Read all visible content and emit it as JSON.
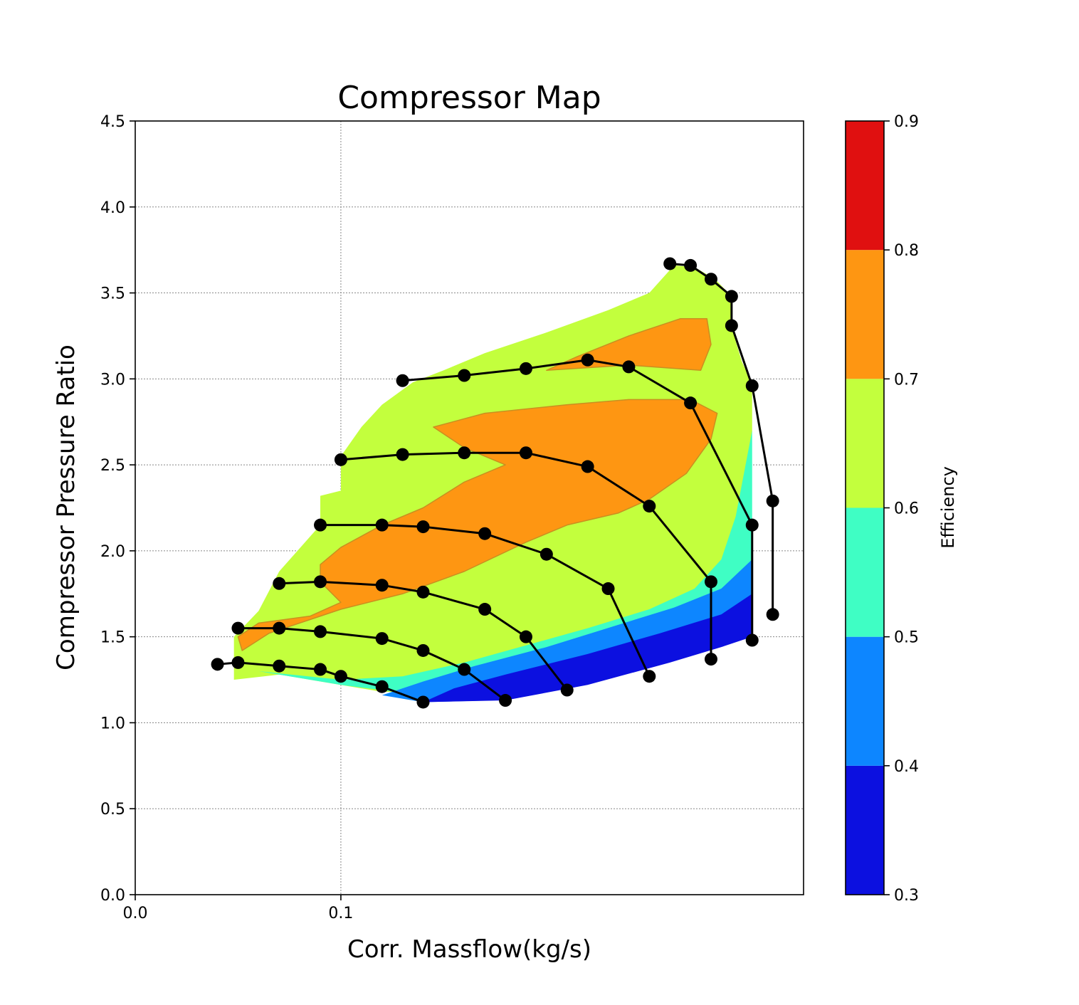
{
  "chart_data": {
    "type": "contour",
    "title": "Compressor Map",
    "xlabel": "Corr. Massflow(kg/s)",
    "ylabel": "Compressor Pressure Ratio",
    "xlim": [
      0.0,
      0.325
    ],
    "ylim": [
      0.0,
      4.5
    ],
    "x_ticks": [
      0.0,
      0.1
    ],
    "x_tick_labels": [
      "0.0",
      "0.1"
    ],
    "y_ticks": [
      0.0,
      0.5,
      1.0,
      1.5,
      2.0,
      2.5,
      3.0,
      3.5,
      4.0,
      4.5
    ],
    "y_tick_labels": [
      "0.0",
      "0.5",
      "1.0",
      "1.5",
      "2.0",
      "2.5",
      "3.0",
      "3.5",
      "4.0",
      "4.5"
    ],
    "grid": true,
    "colorbar": {
      "label": "Efficiency",
      "levels": [
        0.3,
        0.4,
        0.5,
        0.6,
        0.7,
        0.8,
        0.9
      ],
      "tick_labels": [
        "0.3",
        "0.4",
        "0.5",
        "0.6",
        "0.7",
        "0.8",
        "0.9"
      ],
      "colors": [
        "#0c10e0",
        "#0d86ff",
        "#3ffec4",
        "#c3ff3d",
        "#fe9612",
        "#e01010"
      ]
    },
    "efficiency_regions": [
      {
        "level": "0.6-0.7",
        "color": "#c3ff3d",
        "polygon": [
          [
            0.048,
            1.25
          ],
          [
            0.048,
            1.5
          ],
          [
            0.06,
            1.65
          ],
          [
            0.07,
            1.88
          ],
          [
            0.09,
            2.15
          ],
          [
            0.09,
            2.32
          ],
          [
            0.1,
            2.35
          ],
          [
            0.1,
            2.55
          ],
          [
            0.11,
            2.72
          ],
          [
            0.12,
            2.85
          ],
          [
            0.135,
            2.98
          ],
          [
            0.15,
            3.05
          ],
          [
            0.17,
            3.15
          ],
          [
            0.2,
            3.27
          ],
          [
            0.23,
            3.4
          ],
          [
            0.25,
            3.5
          ],
          [
            0.262,
            3.66
          ],
          [
            0.272,
            3.65
          ],
          [
            0.282,
            3.58
          ],
          [
            0.29,
            3.48
          ],
          [
            0.29,
            3.3
          ],
          [
            0.295,
            3.1
          ],
          [
            0.3,
            2.97
          ],
          [
            0.3,
            2.7
          ],
          [
            0.298,
            2.4
          ],
          [
            0.296,
            2.2
          ],
          [
            0.292,
            1.95
          ],
          [
            0.283,
            1.72
          ],
          [
            0.255,
            1.48
          ],
          [
            0.215,
            1.33
          ],
          [
            0.175,
            1.22
          ],
          [
            0.14,
            1.18
          ],
          [
            0.12,
            1.18
          ],
          [
            0.09,
            1.24
          ],
          [
            0.07,
            1.28
          ]
        ]
      },
      {
        "level": "0.5-0.6",
        "color": "#3ffec4",
        "polygon": [
          [
            0.06,
            1.3
          ],
          [
            0.1,
            1.22
          ],
          [
            0.14,
            1.16
          ],
          [
            0.175,
            1.19
          ],
          [
            0.215,
            1.3
          ],
          [
            0.255,
            1.45
          ],
          [
            0.28,
            1.62
          ],
          [
            0.29,
            1.72
          ],
          [
            0.3,
            1.9
          ],
          [
            0.3,
            2.7
          ],
          [
            0.296,
            2.45
          ],
          [
            0.292,
            2.2
          ],
          [
            0.285,
            1.95
          ],
          [
            0.272,
            1.78
          ],
          [
            0.25,
            1.66
          ],
          [
            0.22,
            1.55
          ],
          [
            0.19,
            1.45
          ],
          [
            0.16,
            1.35
          ],
          [
            0.13,
            1.27
          ],
          [
            0.1,
            1.25
          ]
        ]
      },
      {
        "level": "0.4-0.5",
        "color": "#0d86ff",
        "polygon": [
          [
            0.12,
            1.16
          ],
          [
            0.14,
            1.12
          ],
          [
            0.175,
            1.13
          ],
          [
            0.215,
            1.22
          ],
          [
            0.255,
            1.35
          ],
          [
            0.28,
            1.48
          ],
          [
            0.3,
            1.55
          ],
          [
            0.3,
            1.95
          ],
          [
            0.285,
            1.78
          ],
          [
            0.262,
            1.67
          ],
          [
            0.235,
            1.57
          ],
          [
            0.2,
            1.44
          ],
          [
            0.165,
            1.33
          ],
          [
            0.14,
            1.24
          ]
        ]
      },
      {
        "level": "0.3-0.4",
        "color": "#0c10e0",
        "polygon": [
          [
            0.14,
            1.12
          ],
          [
            0.18,
            1.13
          ],
          [
            0.22,
            1.22
          ],
          [
            0.26,
            1.35
          ],
          [
            0.285,
            1.44
          ],
          [
            0.3,
            1.5
          ],
          [
            0.3,
            1.75
          ],
          [
            0.285,
            1.63
          ],
          [
            0.255,
            1.52
          ],
          [
            0.22,
            1.4
          ],
          [
            0.18,
            1.28
          ],
          [
            0.155,
            1.2
          ]
        ]
      },
      {
        "level": "0.7-0.8",
        "color": "#fe9612",
        "polygon": [
          [
            0.052,
            1.42
          ],
          [
            0.065,
            1.52
          ],
          [
            0.085,
            1.6
          ],
          [
            0.1,
            1.66
          ],
          [
            0.13,
            1.75
          ],
          [
            0.16,
            1.88
          ],
          [
            0.19,
            2.05
          ],
          [
            0.21,
            2.15
          ],
          [
            0.235,
            2.22
          ],
          [
            0.25,
            2.3
          ],
          [
            0.268,
            2.45
          ],
          [
            0.28,
            2.65
          ],
          [
            0.283,
            2.8
          ],
          [
            0.27,
            2.88
          ],
          [
            0.24,
            2.88
          ],
          [
            0.21,
            2.85
          ],
          [
            0.17,
            2.8
          ],
          [
            0.145,
            2.72
          ],
          [
            0.16,
            2.6
          ],
          [
            0.18,
            2.5
          ],
          [
            0.16,
            2.4
          ],
          [
            0.14,
            2.25
          ],
          [
            0.12,
            2.15
          ],
          [
            0.1,
            2.02
          ],
          [
            0.09,
            1.92
          ],
          [
            0.09,
            1.82
          ],
          [
            0.1,
            1.7
          ],
          [
            0.085,
            1.62
          ],
          [
            0.06,
            1.58
          ],
          [
            0.05,
            1.5
          ]
        ]
      },
      {
        "level": "0.7-0.8",
        "color": "#fe9612",
        "polygon": [
          [
            0.2,
            3.05
          ],
          [
            0.24,
            3.08
          ],
          [
            0.275,
            3.05
          ],
          [
            0.28,
            3.2
          ],
          [
            0.278,
            3.35
          ],
          [
            0.265,
            3.35
          ],
          [
            0.24,
            3.25
          ],
          [
            0.215,
            3.13
          ]
        ]
      }
    ],
    "speed_lines": [
      {
        "points": [
          [
            0.04,
            1.34
          ],
          [
            0.05,
            1.35
          ],
          [
            0.07,
            1.33
          ],
          [
            0.09,
            1.31
          ],
          [
            0.1,
            1.27
          ],
          [
            0.12,
            1.21
          ],
          [
            0.14,
            1.12
          ]
        ]
      },
      {
        "points": [
          [
            0.05,
            1.55
          ],
          [
            0.07,
            1.55
          ],
          [
            0.09,
            1.53
          ],
          [
            0.12,
            1.49
          ],
          [
            0.14,
            1.42
          ],
          [
            0.16,
            1.31
          ],
          [
            0.18,
            1.13
          ]
        ]
      },
      {
        "points": [
          [
            0.07,
            1.81
          ],
          [
            0.09,
            1.82
          ],
          [
            0.12,
            1.8
          ],
          [
            0.14,
            1.76
          ],
          [
            0.17,
            1.66
          ],
          [
            0.19,
            1.5
          ],
          [
            0.21,
            1.19
          ]
        ]
      },
      {
        "points": [
          [
            0.09,
            2.15
          ],
          [
            0.12,
            2.15
          ],
          [
            0.14,
            2.14
          ],
          [
            0.17,
            2.1
          ],
          [
            0.2,
            1.98
          ],
          [
            0.23,
            1.78
          ],
          [
            0.25,
            1.27
          ]
        ]
      },
      {
        "points": [
          [
            0.1,
            2.53
          ],
          [
            0.13,
            2.56
          ],
          [
            0.16,
            2.57
          ],
          [
            0.19,
            2.57
          ],
          [
            0.22,
            2.49
          ],
          [
            0.25,
            2.26
          ],
          [
            0.28,
            1.82
          ],
          [
            0.28,
            1.37
          ]
        ]
      },
      {
        "points": [
          [
            0.13,
            2.99
          ],
          [
            0.16,
            3.02
          ],
          [
            0.19,
            3.06
          ],
          [
            0.22,
            3.11
          ],
          [
            0.24,
            3.07
          ],
          [
            0.27,
            2.86
          ],
          [
            0.3,
            2.15
          ],
          [
            0.3,
            1.48
          ]
        ]
      },
      {
        "points": [
          [
            0.26,
            3.67
          ],
          [
            0.27,
            3.66
          ],
          [
            0.28,
            3.58
          ],
          [
            0.29,
            3.48
          ],
          [
            0.29,
            3.31
          ],
          [
            0.3,
            2.96
          ],
          [
            0.31,
            2.29
          ],
          [
            0.31,
            1.63
          ]
        ]
      }
    ]
  }
}
